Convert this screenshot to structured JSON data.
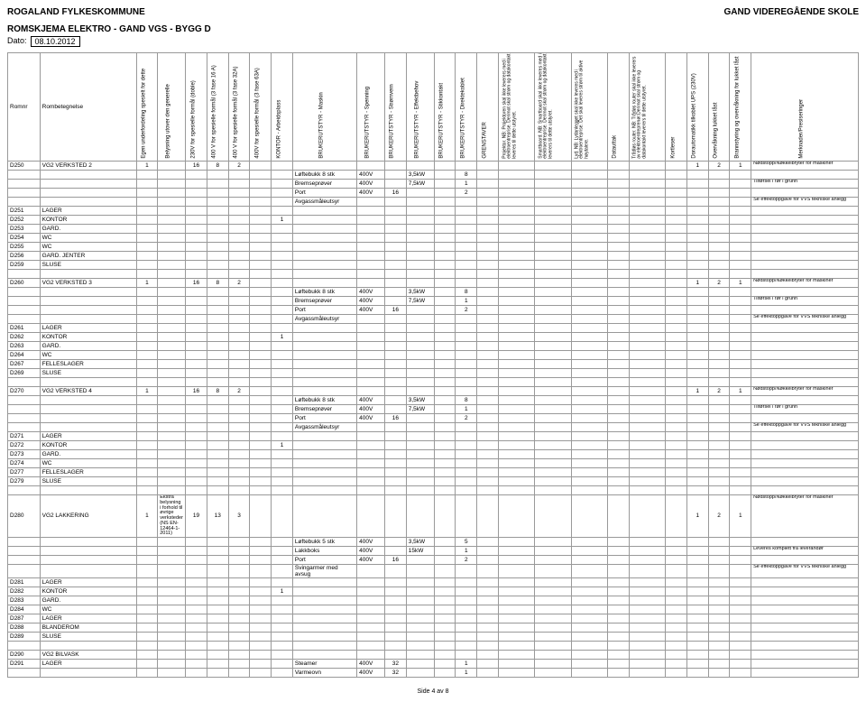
{
  "header": {
    "left": "ROGALAND FYLKESKOMMUNE",
    "right": "GAND VIDEREGÅENDE SKOLE",
    "title": "ROMSKJEMA ELEKTRO - GAND VGS - BYGG D",
    "date_label": "Dato:",
    "date_value": "08.10.2012"
  },
  "cols": {
    "romnr": "Romnr",
    "beteg": "Rombetegnelse",
    "c1": "Egen underfordeling spesielt for dette",
    "c2": "Belysning utover den generelle",
    "c3": "230V for spesielle formål (doble)",
    "c4": "400 V for spesielle formål (3 fase 16 A)",
    "c5": "400 V for spesielle formål (3 fase 32A)",
    "c6": "400V for spesielle formål (3 fase 63A)",
    "c7": "KONTOR - Arbeidsplass",
    "c8": "BRUKERUTSTYR - Maskin",
    "c9": "BRUKERUTSTYR - Spenning",
    "c10": "BRUKERUTSTYR - Strømvern",
    "c11": "BRUKERUTSTYR - Effektbehov",
    "c12": "BRUKERUTSTYR - Stikkontakt",
    "c13": "BRUKERUTSTYR - Direktekoblet",
    "c14": "GRENSTAVER",
    "c15": "Projektor. NB: Projektoren skal ikke leverers med i elektroentreprise. Derimot skal strøm og datakontakt leveres til dette utstyret.",
    "c16": "Smartboard. NB: Smartboard skal ikke leveres med i elektroentreprise. Derimot skal strøm og datakontakt leverers til dette utstyret.",
    "c17": "Lyd. NB: Lydanlegget skal ikke leveres med i elektroentreprise. Det skal leveres strøm til aktive høytalere.",
    "c18": "Datauttak",
    "c19": "Trådløs router. NB: Trådøs router skal ikke leverers av elektroentreprenør.Derimot skal strøm og datakontakt leverers til dette utstyret.",
    "c20": "Kortleser",
    "c21": "Dorautomatikk tilkoblet UPS (230V)",
    "c22": "Overvåkning lukket låst",
    "c23": "Brannstyring og overvåkning for lukket låst",
    "c24": "Merknader/Presiseringer"
  },
  "notes": {
    "extra_lys": "Ekstra belysning i forhold til øvrige verksteder (NS EN-12464-1-2011)",
    "nodstopp": "Nødstopp/Nøkkelbryter for maskiner",
    "tilforsel": "Tilførsel i rør i grunn",
    "effektopp": "Se effektoppgave for VVS tekniske anlegg",
    "leveres": "Leveres komplett fra leverandør"
  },
  "equip": {
    "lofte8": "Løftebukk 8 stk",
    "lofte5": "Løftebukk 5 stk",
    "brems": "Bremseprøver",
    "port": "Port",
    "avgass": "Avgassmåleutsyr",
    "lakk": "Lakkboks",
    "sving": "Svingarmer med avsug",
    "steamer": "Steamer",
    "varme": "Varmeovn"
  },
  "rooms": [
    {
      "nr": "D250",
      "name": "VG2 VERKSTED 2"
    },
    {
      "nr": "D251",
      "name": "LAGER"
    },
    {
      "nr": "D252",
      "name": "KONTOR"
    },
    {
      "nr": "D253",
      "name": "GARD."
    },
    {
      "nr": "D254",
      "name": "WC"
    },
    {
      "nr": "D255",
      "name": "WC"
    },
    {
      "nr": "D256",
      "name": "GARD. JENTER"
    },
    {
      "nr": "D259",
      "name": "SLUSE"
    },
    {
      "nr": "D260",
      "name": "VG2 VERKSTED 3"
    },
    {
      "nr": "D261",
      "name": "LAGER"
    },
    {
      "nr": "D262",
      "name": "KONTOR"
    },
    {
      "nr": "D263",
      "name": "GARD."
    },
    {
      "nr": "D264",
      "name": "WC"
    },
    {
      "nr": "D267",
      "name": "FELLESLAGER"
    },
    {
      "nr": "D269",
      "name": "SLUSE"
    },
    {
      "nr": "D270",
      "name": "VG2 VERKSTED 4"
    },
    {
      "nr": "D271",
      "name": "LAGER"
    },
    {
      "nr": "D272",
      "name": "KONTOR"
    },
    {
      "nr": "D273",
      "name": "GARD."
    },
    {
      "nr": "D274",
      "name": "WC"
    },
    {
      "nr": "D277",
      "name": "FELLESLAGER"
    },
    {
      "nr": "D279",
      "name": "SLUSE"
    },
    {
      "nr": "D280",
      "name": "VG2 LAKKERING"
    },
    {
      "nr": "D281",
      "name": "LAGER"
    },
    {
      "nr": "D282",
      "name": "KONTOR"
    },
    {
      "nr": "D283",
      "name": "GARD."
    },
    {
      "nr": "D284",
      "name": "WC"
    },
    {
      "nr": "D287",
      "name": "LAGER"
    },
    {
      "nr": "D288",
      "name": "BLANDEROM"
    },
    {
      "nr": "D289",
      "name": "SLUSE"
    },
    {
      "nr": "D290",
      "name": "VG2 BILVASK"
    },
    {
      "nr": "D291",
      "name": "LAGER"
    }
  ],
  "vals": {
    "v400": "400V",
    "kw35": "3,5kW",
    "kw75": "7,5kW",
    "kw15": "15kW",
    "n1": "1",
    "n2": "2",
    "n3": "3",
    "n5": "5",
    "n8": "8",
    "n13": "13",
    "n16": "16",
    "n19": "19",
    "n32": "32"
  },
  "footer": "Side 4 av 8"
}
